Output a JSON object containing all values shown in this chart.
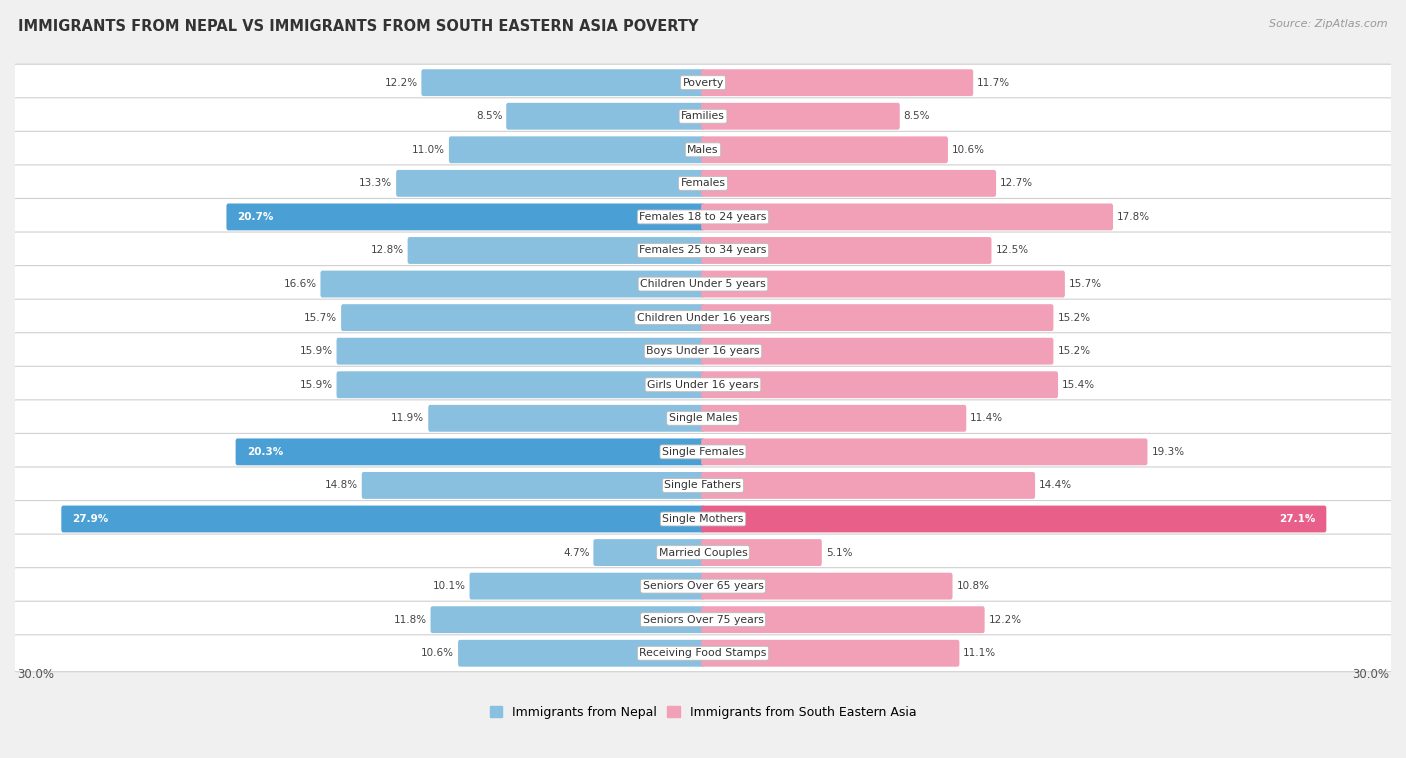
{
  "title": "IMMIGRANTS FROM NEPAL VS IMMIGRANTS FROM SOUTH EASTERN ASIA POVERTY",
  "source": "Source: ZipAtlas.com",
  "categories": [
    "Poverty",
    "Families",
    "Males",
    "Females",
    "Females 18 to 24 years",
    "Females 25 to 34 years",
    "Children Under 5 years",
    "Children Under 16 years",
    "Boys Under 16 years",
    "Girls Under 16 years",
    "Single Males",
    "Single Females",
    "Single Fathers",
    "Single Mothers",
    "Married Couples",
    "Seniors Over 65 years",
    "Seniors Over 75 years",
    "Receiving Food Stamps"
  ],
  "nepal_values": [
    12.2,
    8.5,
    11.0,
    13.3,
    20.7,
    12.8,
    16.6,
    15.7,
    15.9,
    15.9,
    11.9,
    20.3,
    14.8,
    27.9,
    4.7,
    10.1,
    11.8,
    10.6
  ],
  "sea_values": [
    11.7,
    8.5,
    10.6,
    12.7,
    17.8,
    12.5,
    15.7,
    15.2,
    15.2,
    15.4,
    11.4,
    19.3,
    14.4,
    27.1,
    5.1,
    10.8,
    12.2,
    11.1
  ],
  "nepal_color": "#89bfdf",
  "sea_color": "#f2a0b8",
  "nepal_highlight_color": "#4a9fd4",
  "sea_highlight_color": "#e8608a",
  "highlight_threshold": 20.0,
  "max_val": 30.0,
  "background_color": "#f0f0f0",
  "bar_background": "#ffffff",
  "legend_nepal": "Immigrants from Nepal",
  "legend_sea": "Immigrants from South Eastern Asia"
}
